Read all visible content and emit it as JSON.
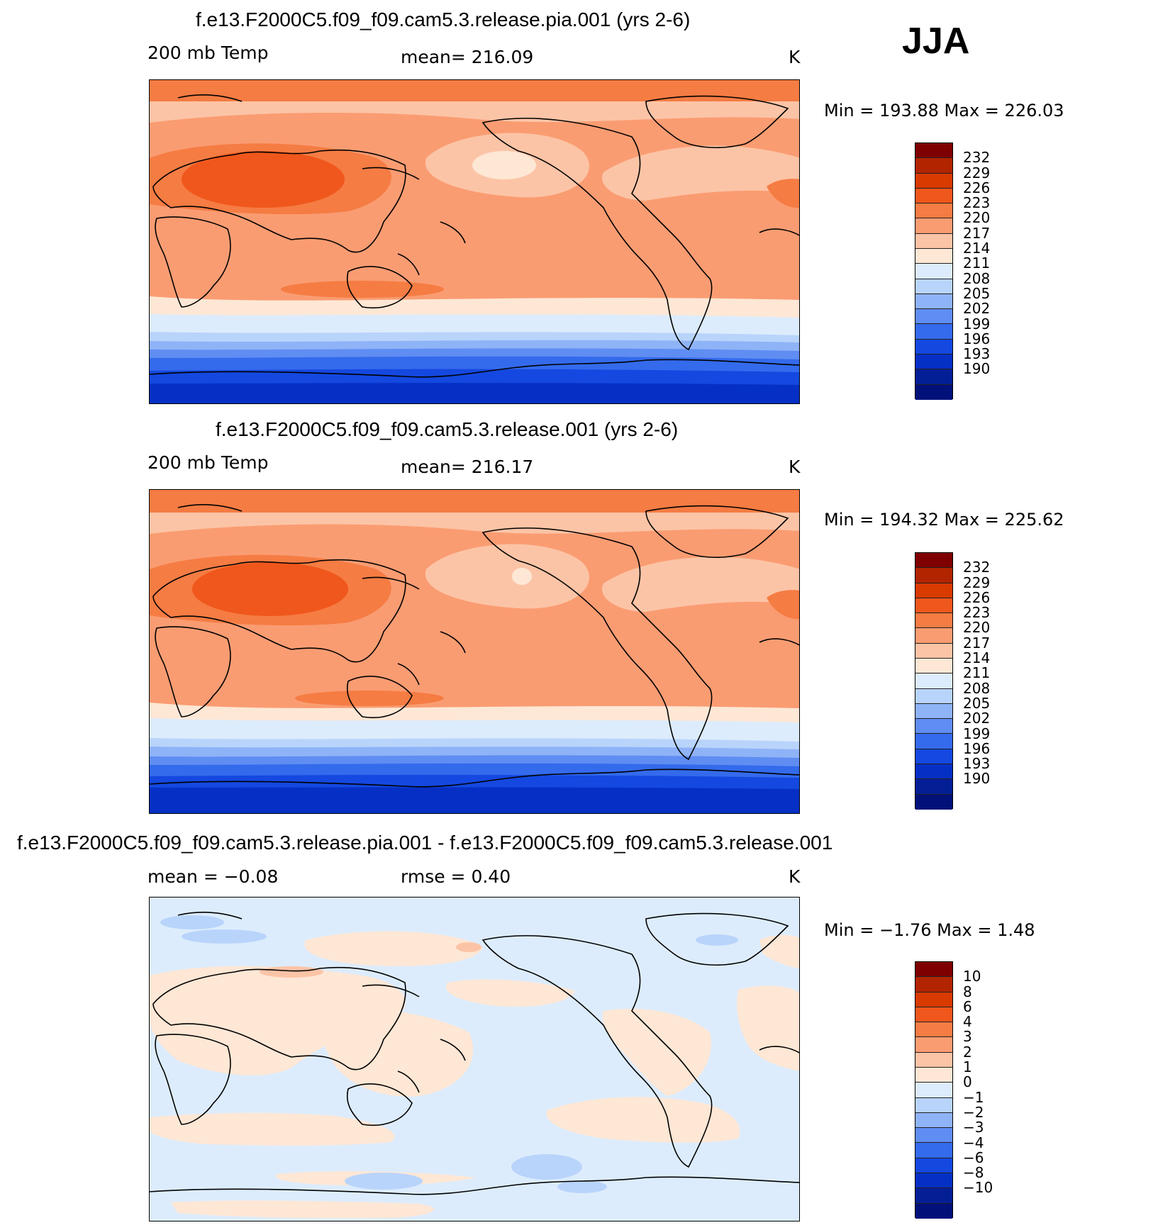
{
  "season": "JJA",
  "panels": [
    {
      "title": "f.e13.F2000C5.f09_f09.cam5.3.release.pia.001 (yrs 2-6)",
      "variable": "200 mb Temp",
      "stat_text": "mean=  216.09",
      "units": "K",
      "minmax": "Min  =  193.88  Max  =  226.03"
    },
    {
      "title": "f.e13.F2000C5.f09_f09.cam5.3.release.001 (yrs 2-6)",
      "variable": "200 mb Temp",
      "stat_text": "mean=  216.17",
      "units": "K",
      "minmax": "Min  =  194.32  Max  =  225.62"
    },
    {
      "title": "f.e13.F2000C5.f09_f09.cam5.3.release.pia.001 - f.e13.F2000C5.f09_f09.cam5.3.release.001",
      "mean_text": "mean  =     −0.08",
      "rmse_text": "rmse  =     0.40",
      "units": "K",
      "minmax": "Min  =    −1.76  Max  =     1.48"
    }
  ],
  "colorbars": {
    "temperature": {
      "colors": [
        "#7f0000",
        "#b22400",
        "#d83a00",
        "#f0571c",
        "#f57c43",
        "#fa9c72",
        "#fcc4a6",
        "#fee7d5",
        "#ddecfc",
        "#b9d4fb",
        "#8fb3f7",
        "#5f8df2",
        "#346aec",
        "#1448e0",
        "#0630c5",
        "#041f96",
        "#02117a"
      ],
      "labels": [
        "232",
        "229",
        "226",
        "223",
        "220",
        "217",
        "214",
        "211",
        "208",
        "205",
        "202",
        "199",
        "196",
        "193",
        "190"
      ]
    },
    "difference": {
      "colors": [
        "#7f0000",
        "#b22400",
        "#d83a00",
        "#f0571c",
        "#f57c43",
        "#fa9c72",
        "#fcc4a6",
        "#fee7d5",
        "#ddecfc",
        "#b9d4fb",
        "#8fb3f7",
        "#5f8df2",
        "#346aec",
        "#1448e0",
        "#0630c5",
        "#041f96",
        "#02117a"
      ],
      "labels": [
        "10",
        "8",
        "6",
        "4",
        "3",
        "2",
        "1",
        "0",
        "−1",
        "−2",
        "−3",
        "−4",
        "−6",
        "−8",
        "−10"
      ]
    }
  }
}
